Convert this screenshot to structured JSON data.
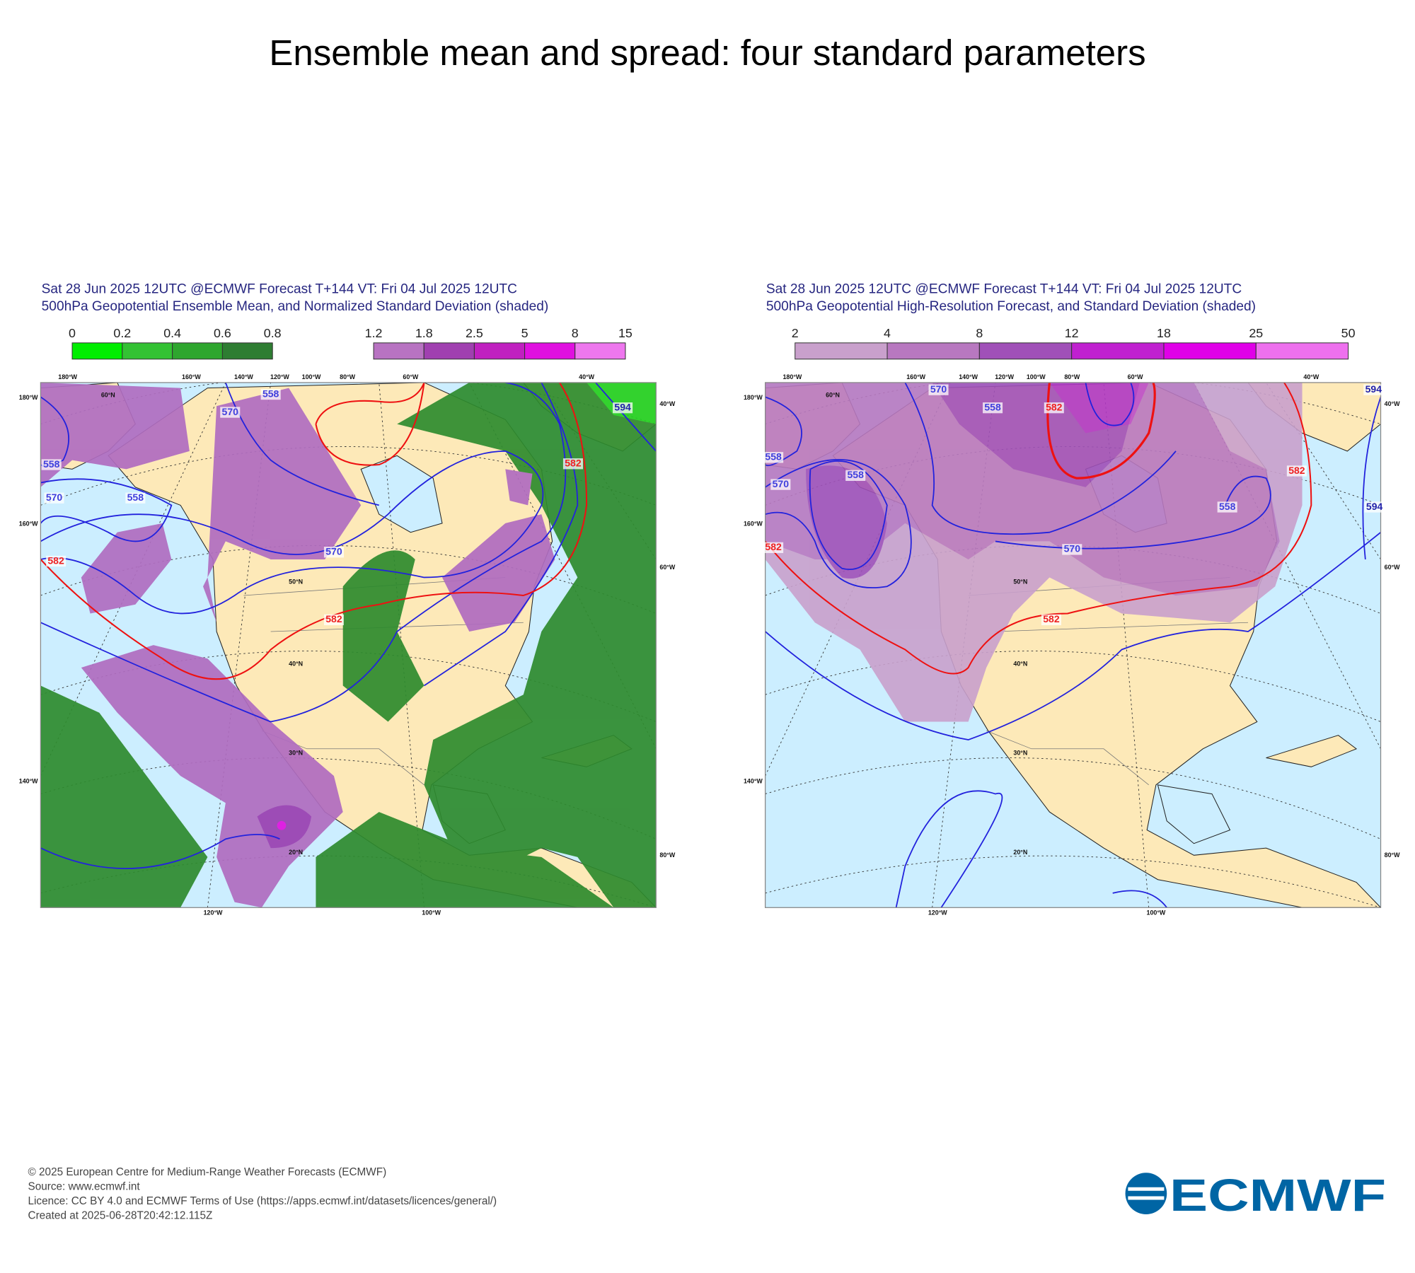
{
  "title": "Ensemble mean and spread: four standard parameters",
  "panels": [
    {
      "header": [
        "Sat 28 Jun 2025 12UTC @ECMWF Forecast T+144 VT: Fri 04 Jul 2025 12UTC",
        "500hPa Geopotential Ensemble Mean, and Normalized Standard Deviation (shaded)"
      ],
      "colorbars": [
        {
          "ticks": [
            0,
            0.2,
            0.4,
            0.6,
            0.8
          ]
        },
        {
          "ticks": [
            1.2,
            1.8,
            2.5,
            5,
            8,
            15
          ]
        }
      ],
      "contour_labels": [
        "558",
        "570",
        "558",
        "570",
        "582",
        "582",
        "582",
        "594",
        "570",
        "558"
      ],
      "lon_top": [
        "180°W",
        "160°W",
        "140°W",
        "120°W",
        "100°W",
        "80°W",
        "60°W",
        "40°W"
      ],
      "lon_left": [
        "180°W",
        "160°W",
        "140°W"
      ],
      "lon_right": [
        "40°W",
        "60°W",
        "80°W"
      ],
      "lon_bottom": [
        "120°W",
        "100°W"
      ],
      "lat_labels": [
        "60°N",
        "50°N",
        "40°N",
        "30°N",
        "20°N"
      ]
    },
    {
      "header": [
        "Sat 28 Jun 2025 12UTC @ECMWF Forecast T+144 VT: Fri 04 Jul 2025 12UTC",
        "500hPa Geopotential High-Resolution Forecast, and Standard Deviation (shaded)"
      ],
      "colorbars": [
        {
          "ticks": [
            2,
            4,
            8,
            12,
            18,
            25,
            50
          ]
        }
      ],
      "contour_labels": [
        "558",
        "570",
        "558",
        "570",
        "558",
        "582",
        "570",
        "582",
        "582",
        "582",
        "558",
        "594",
        "594"
      ],
      "lon_top": [
        "180°W",
        "160°W",
        "140°W",
        "120°W",
        "100°W",
        "80°W",
        "60°W",
        "40°W"
      ],
      "lon_left": [
        "180°W",
        "160°W",
        "140°W"
      ],
      "lon_right": [
        "40°W",
        "60°W",
        "80°W"
      ],
      "lon_bottom": [
        "120°W",
        "100°W"
      ],
      "lat_labels": [
        "60°N",
        "50°N",
        "40°N",
        "30°N",
        "20°N"
      ]
    }
  ],
  "footer": [
    "© 2025 European Centre for Medium-Range Weather Forecasts (ECMWF)",
    "Source: www.ecmwf.int",
    "Licence: CC BY 4.0 and ECMWF Terms of Use (https://apps.ecmwf.int/datasets/licences/general/)",
    "Created at 2025-06-28T20:42:12.115Z"
  ],
  "logo": "ECMWF"
}
